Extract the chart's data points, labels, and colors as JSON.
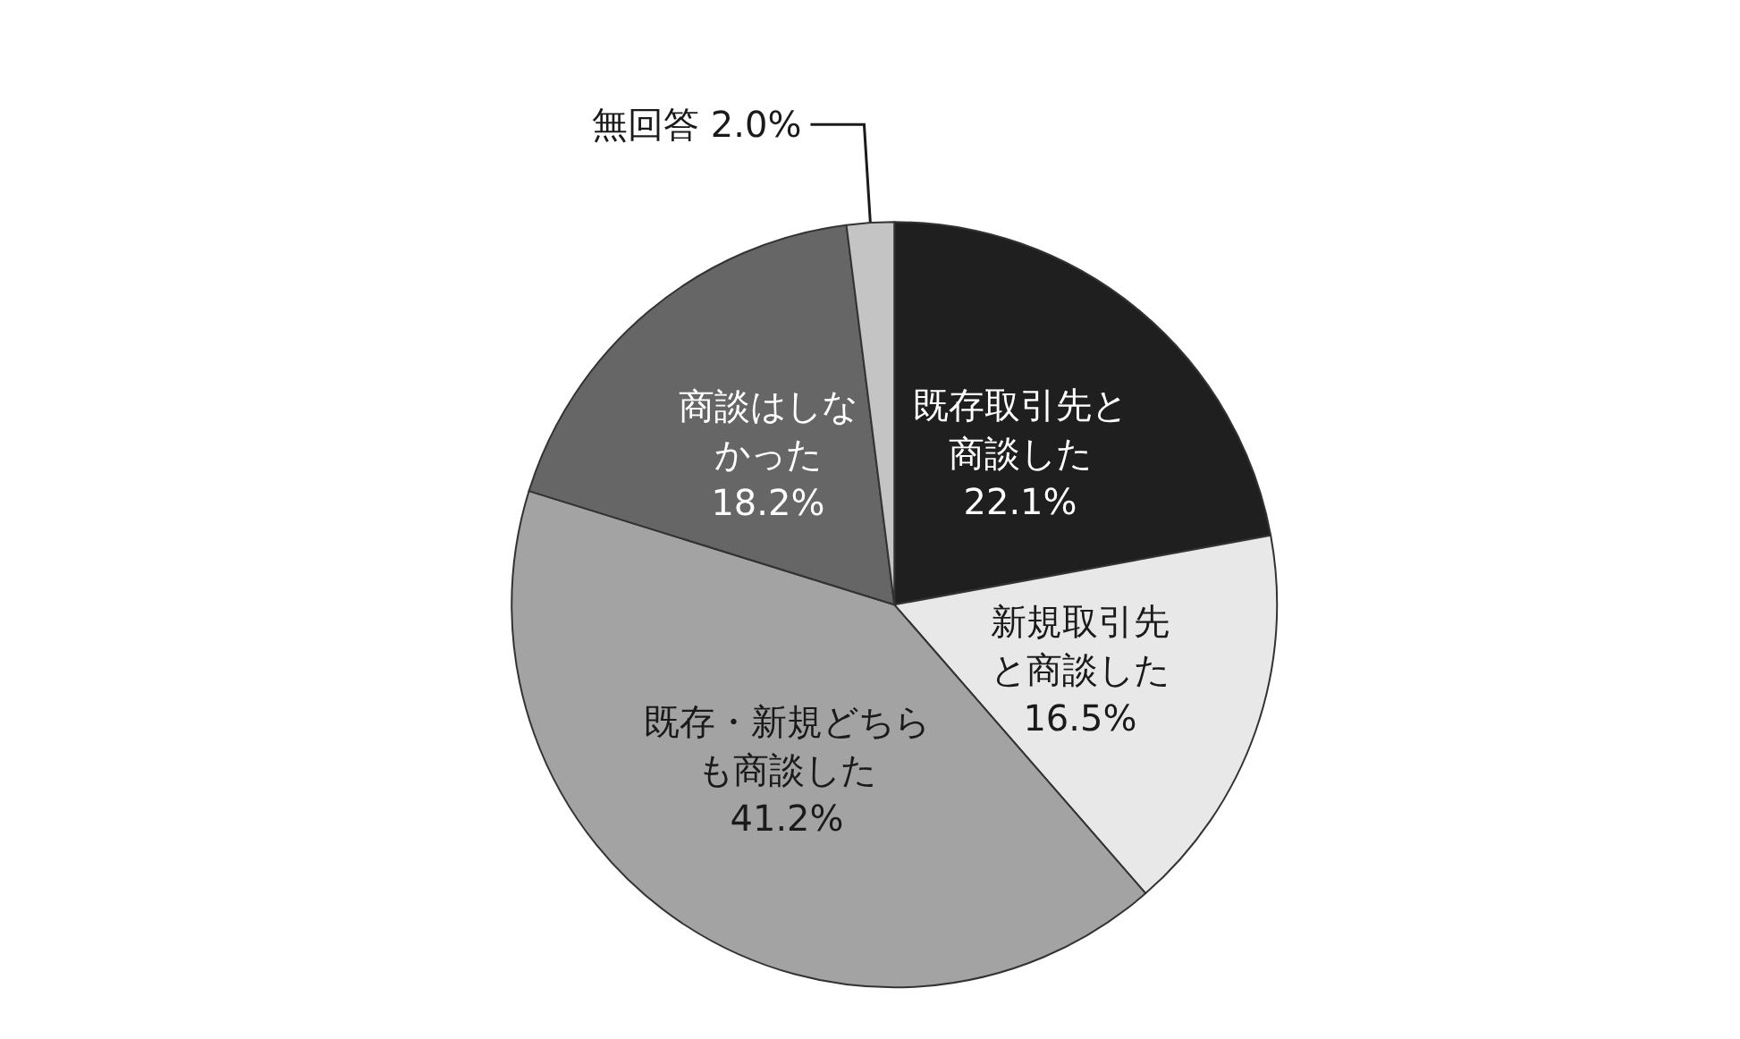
{
  "chart_data": {
    "type": "pie",
    "categories": [
      "既存取引先と商談した",
      "新規取引先と商談した",
      "既存・新規どちらも商談した",
      "商談はしなかった",
      "無回答"
    ],
    "values": [
      22.1,
      16.5,
      41.2,
      18.2,
      2.0
    ],
    "value_labels": [
      "22.1%",
      "16.5%",
      "41.2%",
      "18.2%",
      "2.0%"
    ],
    "colors": [
      "#1f1f1f",
      "#e8e8e8",
      "#a3a3a3",
      "#666666",
      "#c4c4c4"
    ]
  }
}
